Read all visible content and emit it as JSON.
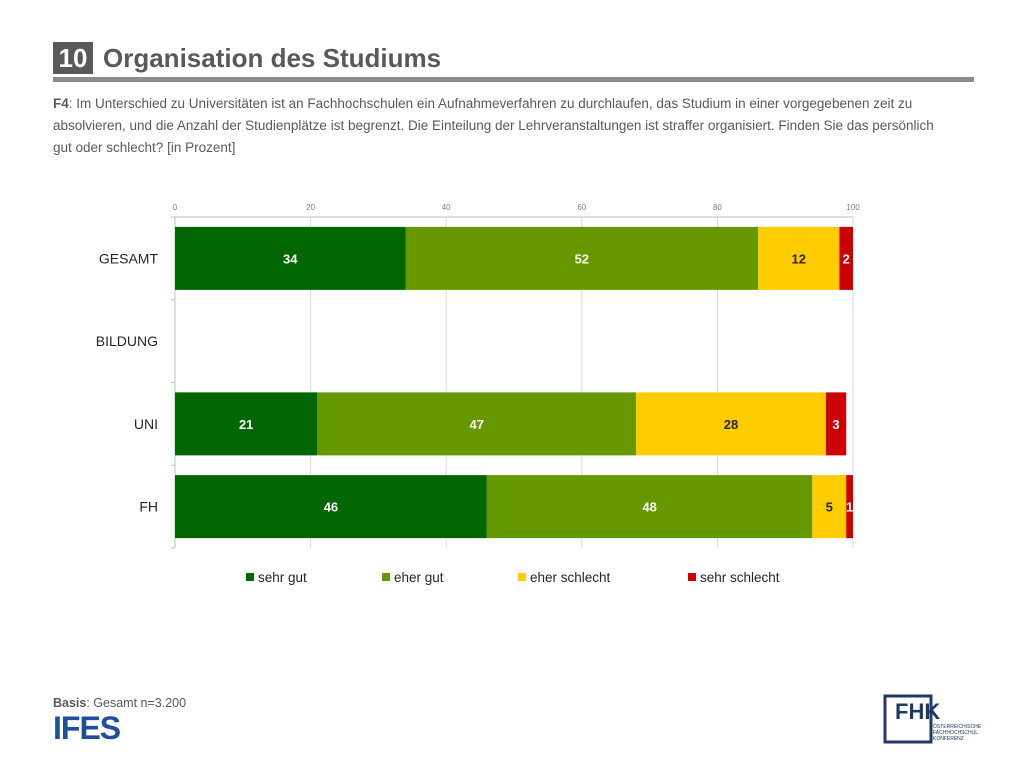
{
  "header": {
    "number": "10",
    "title": "Organisation des Studiums"
  },
  "question": {
    "label": "F4",
    "text": ": Im Unterschied zu Universitäten ist an Fachhochschulen ein Aufnahmeverfahren zu durchlaufen, das Studium in einer vorgegebenen zeit zu absolvieren, und die Anzahl der Studienplätze ist begrenzt. Die Einteilung der Lehrveranstaltungen ist straffer organisiert. Finden Sie das persönlich gut oder schlecht? [in Prozent]"
  },
  "chart_data": {
    "type": "bar",
    "orientation": "horizontal",
    "stacked": true,
    "categories": [
      "GESAMT",
      "BILDUNG",
      "UNI",
      "FH"
    ],
    "series": [
      {
        "name": "sehr gut",
        "color": "#006600",
        "values": [
          34,
          null,
          21,
          46
        ]
      },
      {
        "name": "eher gut",
        "color": "#669900",
        "values": [
          52,
          null,
          47,
          48
        ]
      },
      {
        "name": "eher schlecht",
        "color": "#ffcc00",
        "values": [
          12,
          null,
          28,
          5
        ]
      },
      {
        "name": "sehr schlecht",
        "color": "#cc0000",
        "values": [
          2,
          null,
          3,
          1
        ]
      }
    ],
    "xlim": [
      0,
      100
    ],
    "xticks": [
      0,
      20,
      40,
      60,
      80,
      100
    ],
    "grid": true,
    "legend_position": "bottom"
  },
  "basis": {
    "label": "Basis",
    "text": ": Gesamt n=3.200"
  },
  "logos": {
    "ifes": "IFES",
    "fhk_main": "FHK",
    "fhk_sub": [
      "ÖSTERREICHISCHE",
      "FACHHOCHSCHUL",
      "KONFERENZ"
    ]
  }
}
